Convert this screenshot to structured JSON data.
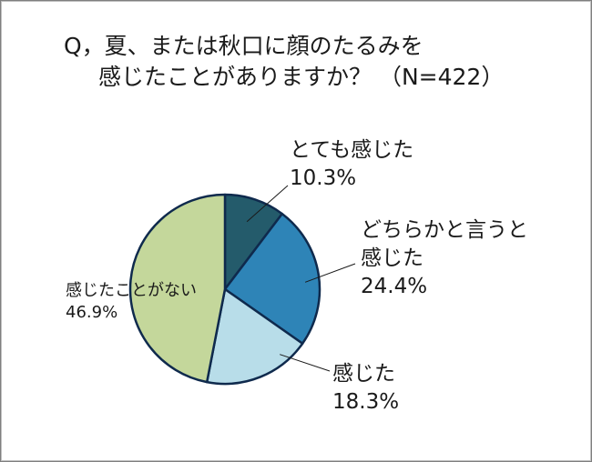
{
  "chart_data": {
    "type": "pie",
    "title_line1": "Q，夏、または秋口に顔のたるみを",
    "title_line2": "感じたことがありますか？ （N=422）",
    "slices": [
      {
        "label": "とても感じた",
        "value_text": "10.3%",
        "value": 10.3,
        "color": "#245b6b"
      },
      {
        "label_lines": [
          "どちらかと言うと",
          "感じた"
        ],
        "value_text": "24.4%",
        "value": 24.4,
        "color": "#2e84b7"
      },
      {
        "label": "感じた",
        "value_text": "18.3%",
        "value": 18.3,
        "color": "#b8dde9"
      },
      {
        "label": "感じたことがない",
        "value_text": "46.9%",
        "value": 46.9,
        "color": "#c4d79b"
      }
    ],
    "start_angle": "12 o'clock",
    "direction": "clockwise",
    "legend": "none"
  }
}
